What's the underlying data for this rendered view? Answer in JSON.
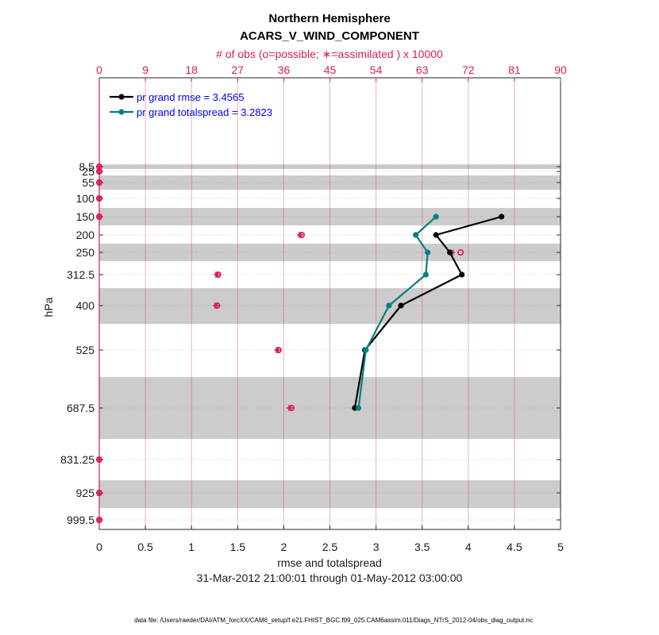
{
  "chart_data": {
    "type": "line",
    "title": "Northern Hemisphere",
    "subtitle": "ACARS_V_WIND_COMPONENT",
    "top_axis_label": "# of obs (o=possible; ∗=assimilated ) x 10000",
    "top_axis_ticks": [
      "0",
      "9",
      "18",
      "27",
      "36",
      "45",
      "54",
      "63",
      "72",
      "81",
      "90"
    ],
    "top_axis_range": [
      0,
      90
    ],
    "xlabel": "rmse and totalspread",
    "xlim": [
      0,
      5
    ],
    "x_ticks": [
      "0",
      "0.5",
      "1",
      "1.5",
      "2",
      "2.5",
      "3",
      "3.5",
      "4",
      "4.5",
      "5"
    ],
    "ylabel": "hPa",
    "y_ticks": [
      "8.5",
      "25",
      "55",
      "100",
      "150",
      "200",
      "250",
      "312.5",
      "400",
      "525",
      "687.5",
      "831.25",
      "925",
      "999.5"
    ],
    "date_range": "31-Mar-2012 21:00:01 through 01-May-2012 03:00:00",
    "footnote": "data file: /Users/raeder/DAI/ATM_forcXX/CAM6_setup/f.e21.FHIST_BGC.f09_025.CAM6assim.011/Diags_NTrS_2012-04/obs_diag_output.nc",
    "legend_position": "top-left",
    "grid": true,
    "colors": {
      "rmse": "#000000",
      "totalspread": "#00807f",
      "obs": "#d81b60",
      "band": "#cccccc",
      "legend_text": "#0000ee"
    },
    "series": [
      {
        "name": "pr grand rmse = 3.4565",
        "levels": [
          150,
          200,
          250,
          312.5,
          400,
          525,
          687.5
        ],
        "values": [
          4.36,
          3.65,
          3.8,
          3.93,
          3.27,
          2.88,
          2.77
        ]
      },
      {
        "name": "pr grand totalspread = 3.2823",
        "levels": [
          150,
          200,
          250,
          312.5,
          400,
          525,
          687.5
        ],
        "values": [
          3.65,
          3.43,
          3.56,
          3.54,
          3.14,
          2.89,
          2.81
        ]
      }
    ],
    "obs_counts": {
      "levels": [
        8.5,
        25,
        55,
        100,
        150,
        200,
        250,
        312.5,
        400,
        525,
        687.5,
        831.25,
        925,
        999.5
      ],
      "possible": [
        0,
        0,
        0,
        0,
        0,
        39.5,
        70.5,
        23.2,
        23.0,
        35.0,
        37.5,
        0,
        0,
        0
      ],
      "assimilated": [
        0,
        0,
        0,
        0,
        0,
        39.2,
        68.8,
        23.0,
        22.8,
        34.8,
        37.2,
        0,
        0,
        0
      ]
    }
  }
}
